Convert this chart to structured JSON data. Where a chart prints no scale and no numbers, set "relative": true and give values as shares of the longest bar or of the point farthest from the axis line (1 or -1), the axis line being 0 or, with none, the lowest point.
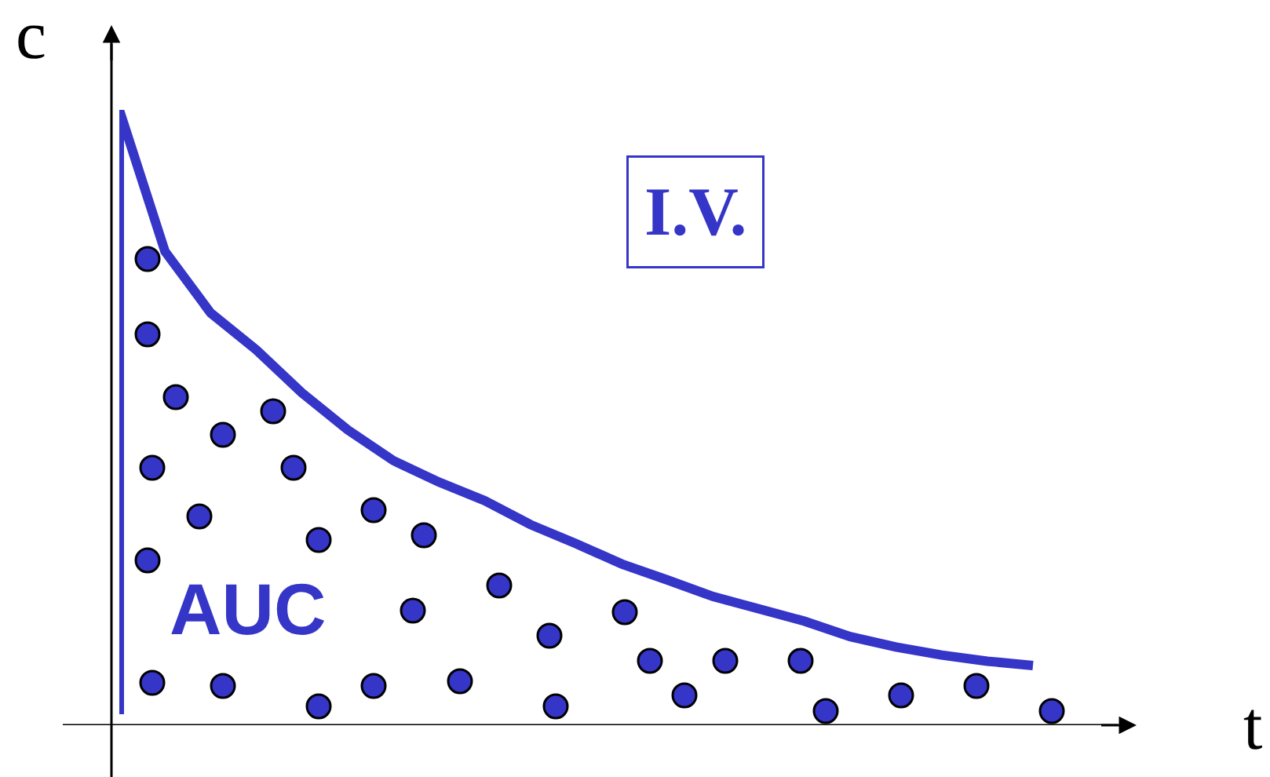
{
  "chart_data": {
    "type": "line",
    "relative": true,
    "xlabel": "t",
    "ylabel": "c",
    "annotations": [
      "AUC",
      "I.V."
    ],
    "categories": [
      null,
      null,
      null,
      null,
      null,
      null,
      null,
      null,
      null,
      null,
      null,
      null,
      null,
      null,
      null,
      null,
      null,
      null,
      null,
      null,
      null
    ],
    "legend": false,
    "marker": "none",
    "line_style": "solid",
    "series": [
      {
        "color": "#3535c8",
        "values": [
          1.0,
          0.77,
          0.67,
          0.61,
          0.54,
          0.48,
          0.43,
          0.395,
          0.365,
          0.326,
          0.295,
          0.262,
          0.236,
          0.209,
          0.189,
          0.169,
          0.144,
          0.127,
          0.114,
          0.104,
          0.097
        ]
      }
    ]
  }
}
